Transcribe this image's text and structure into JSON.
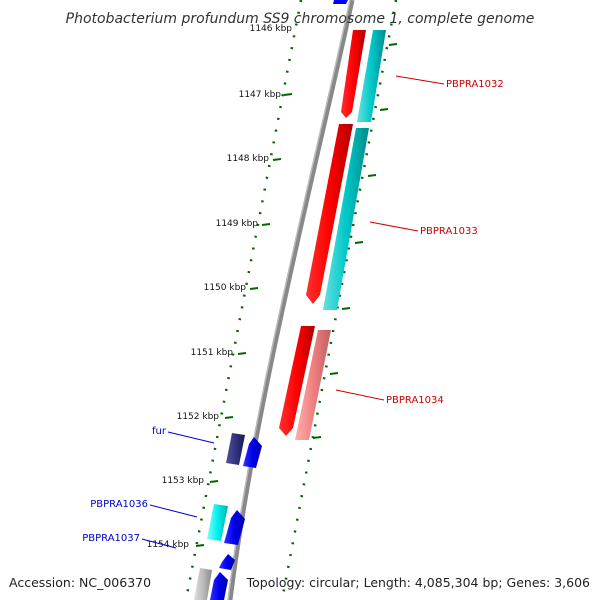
{
  "title": "Photobacterium profundum SS9 chromosome 1, complete genome",
  "footer": {
    "accession": "Accession: NC_006370",
    "summary": "Topology: circular; Length: 4,085,304 bp; Genes: 3,606"
  },
  "ticks": [
    "1146 kbp",
    "1147 kbp",
    "1148 kbp",
    "1149 kbp",
    "1150 kbp",
    "1151 kbp",
    "1152 kbp",
    "1153 kbp",
    "1154 kbp"
  ],
  "gene_labels": {
    "pbpra1032": "PBPRA1032",
    "pbpra1033": "PBPRA1033",
    "pbpra1034": "PBPRA1034",
    "fur": "fur",
    "pbpra1036": "PBPRA1036",
    "pbpra1037": "PBPRA1037"
  },
  "colors": {
    "forward_cds": "#ff0000",
    "forward_rna": "#00cccc",
    "pseudo": "#ff8080",
    "reverse_cds": "#0000ff",
    "reverse_dark": "#333399",
    "reverse_rna": "#00ffff",
    "backbone": "#888888",
    "tick_marks": "#006600",
    "label_red": "#cc0000",
    "label_blue": "#0000cc"
  }
}
